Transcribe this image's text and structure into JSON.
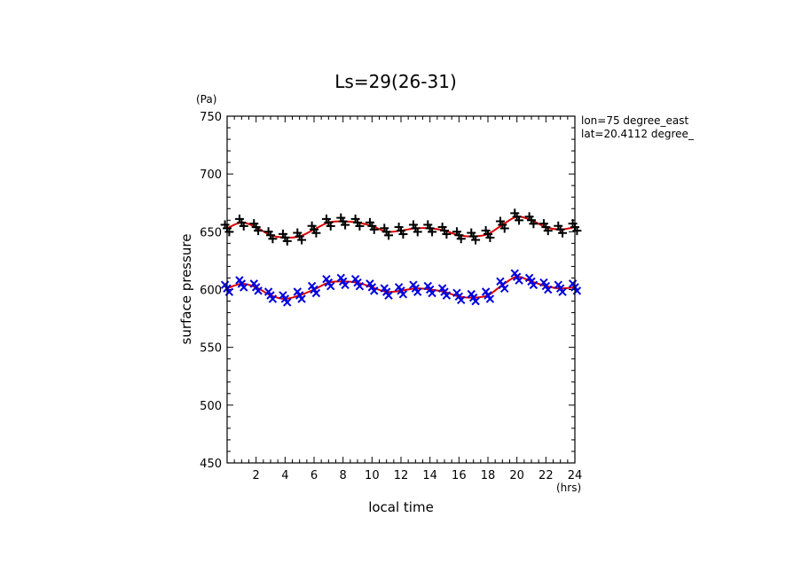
{
  "chart_data": {
    "type": "scatter",
    "title": "Ls=29(26-31)",
    "xlabel": "local time",
    "ylabel": "surface pressure",
    "x_unit": "(hrs)",
    "y_unit": "(Pa)",
    "annotation_lines": [
      "lon=75 degree_east",
      "lat=20.4112 degree_"
    ],
    "xlim": [
      0,
      24
    ],
    "ylim": [
      450,
      750
    ],
    "x_ticks": [
      2,
      4,
      6,
      8,
      10,
      12,
      14,
      16,
      18,
      20,
      22,
      24
    ],
    "y_ticks": [
      450,
      500,
      550,
      600,
      650,
      700,
      750
    ],
    "grid": false,
    "series": [
      {
        "marker": "plus",
        "color": "#000000",
        "fit_color": "#dd0000",
        "x": [
          0,
          1,
          2,
          3,
          4,
          5,
          6,
          7,
          8,
          9,
          10,
          11,
          12,
          13,
          14,
          15,
          16,
          17,
          18,
          19,
          20,
          21,
          22,
          23,
          24
        ],
        "y": [
          653,
          658,
          654,
          647,
          645,
          646,
          652,
          658,
          659,
          658,
          655,
          650,
          651,
          653,
          653,
          651,
          647,
          646,
          648,
          656,
          663,
          660,
          654,
          652,
          654
        ]
      },
      {
        "marker": "cross",
        "color": "#0000dd",
        "fit_color": "#dd0000",
        "x": [
          0,
          1,
          2,
          3,
          4,
          5,
          6,
          7,
          8,
          9,
          10,
          11,
          12,
          13,
          14,
          15,
          16,
          17,
          18,
          19,
          20,
          21,
          22,
          23,
          24
        ],
        "y": [
          601,
          605,
          602,
          595,
          592,
          595,
          600,
          606,
          607,
          606,
          602,
          598,
          599,
          601,
          600,
          598,
          594,
          593,
          595,
          604,
          611,
          607,
          603,
          601,
          602
        ]
      }
    ]
  }
}
